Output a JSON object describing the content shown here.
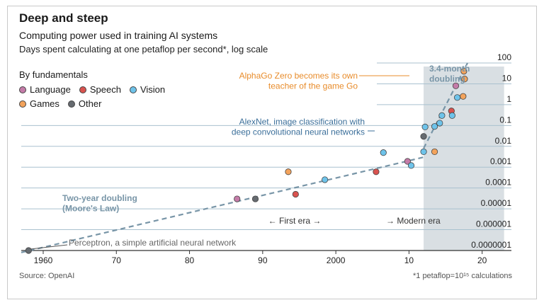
{
  "chart_data": {
    "type": "scatter",
    "title": "Deep and steep",
    "subtitle": "Computing power used in training AI systems",
    "ylabel": "Days spent calculating at one petaflop per second*, log scale",
    "y_scale": "log",
    "ylim": [
      1e-07,
      100
    ],
    "y_ticks": [
      "100",
      "10",
      "1",
      "0.1",
      "0.01",
      "0.001",
      "0.0001",
      "0.00001",
      "0.000001",
      "0.0000001"
    ],
    "xlim": [
      1957,
      2024
    ],
    "x_ticks": [
      {
        "year": 1960,
        "label": "1960"
      },
      {
        "year": 1970,
        "label": "70"
      },
      {
        "year": 1980,
        "label": "80"
      },
      {
        "year": 1990,
        "label": "90"
      },
      {
        "year": 2000,
        "label": "2000"
      },
      {
        "year": 2010,
        "label": "10"
      },
      {
        "year": 2020,
        "label": "20"
      }
    ],
    "legend_title": "By fundamentals",
    "legend": [
      {
        "key": "language",
        "label": "Language",
        "color": "#c47ba8"
      },
      {
        "key": "speech",
        "label": "Speech",
        "color": "#d9534f"
      },
      {
        "key": "vision",
        "label": "Vision",
        "color": "#6ec3ea"
      },
      {
        "key": "games",
        "label": "Games",
        "color": "#f3a35c"
      },
      {
        "key": "other",
        "label": "Other",
        "color": "#666b70"
      }
    ],
    "points": [
      {
        "x": 1958.0,
        "y": 1e-07,
        "cat": "other"
      },
      {
        "x": 1986.5,
        "y": 3e-05,
        "cat": "language"
      },
      {
        "x": 1989.0,
        "y": 3e-05,
        "cat": "other"
      },
      {
        "x": 1993.5,
        "y": 0.0006,
        "cat": "games"
      },
      {
        "x": 1994.5,
        "y": 5e-05,
        "cat": "speech"
      },
      {
        "x": 1998.5,
        "y": 0.00025,
        "cat": "vision"
      },
      {
        "x": 2005.5,
        "y": 0.0006,
        "cat": "speech"
      },
      {
        "x": 2006.5,
        "y": 0.005,
        "cat": "vision"
      },
      {
        "x": 2009.8,
        "y": 0.0019,
        "cat": "language"
      },
      {
        "x": 2010.3,
        "y": 0.0012,
        "cat": "vision"
      },
      {
        "x": 2012.0,
        "y": 0.0055,
        "cat": "vision"
      },
      {
        "x": 2012.2,
        "y": 0.085,
        "cat": "vision"
      },
      {
        "x": 2012.0,
        "y": 0.03,
        "cat": "other"
      },
      {
        "x": 2013.5,
        "y": 0.0055,
        "cat": "games"
      },
      {
        "x": 2013.5,
        "y": 0.09,
        "cat": "vision"
      },
      {
        "x": 2014.2,
        "y": 0.13,
        "cat": "vision"
      },
      {
        "x": 2014.5,
        "y": 0.3,
        "cat": "vision"
      },
      {
        "x": 2015.8,
        "y": 0.5,
        "cat": "speech"
      },
      {
        "x": 2015.9,
        "y": 0.3,
        "cat": "vision"
      },
      {
        "x": 2016.4,
        "y": 8,
        "cat": "language"
      },
      {
        "x": 2016.6,
        "y": 2.2,
        "cat": "vision"
      },
      {
        "x": 2017.4,
        "y": 2.5,
        "cat": "games"
      },
      {
        "x": 2017.6,
        "y": 17,
        "cat": "games"
      },
      {
        "x": 2017.5,
        "y": 40,
        "cat": "games"
      }
    ],
    "trend_lines": [
      {
        "name": "Two-year doubling (Moore's Law)",
        "from": [
          1957,
          8e-08
        ],
        "to": [
          2012,
          0.003
        ]
      },
      {
        "name": "3.4-month doubling",
        "from": [
          2012,
          0.008
        ],
        "to": [
          2018,
          100
        ]
      }
    ],
    "shaded_region": {
      "x_start": 2012,
      "x_end": 2023
    },
    "annotations": {
      "alphago_zero": "AlphaGo Zero becomes its own\nteacher of the game Go",
      "alexnet": "AlexNet, image classification with\ndeep convolutional neural networks",
      "perceptron": "Perceptron, a simple artificial neural network",
      "moores_law": "Two-year doubling\n(Moore's Law)",
      "fast_doubling": "3.4-month\ndoubling",
      "first_era": "← First era →",
      "modern_era": "→ Modern era"
    },
    "source": "Source: OpenAI",
    "footnote": "*1 petaflop=10¹⁵ calculations"
  },
  "colors": {
    "grid": "#a9c1cf",
    "trend": "#7895a7",
    "shade": "#d9dfe3",
    "annotation_orange": "#e88c2b",
    "annotation_blue": "#3b6f9a",
    "axis": "#333333"
  }
}
